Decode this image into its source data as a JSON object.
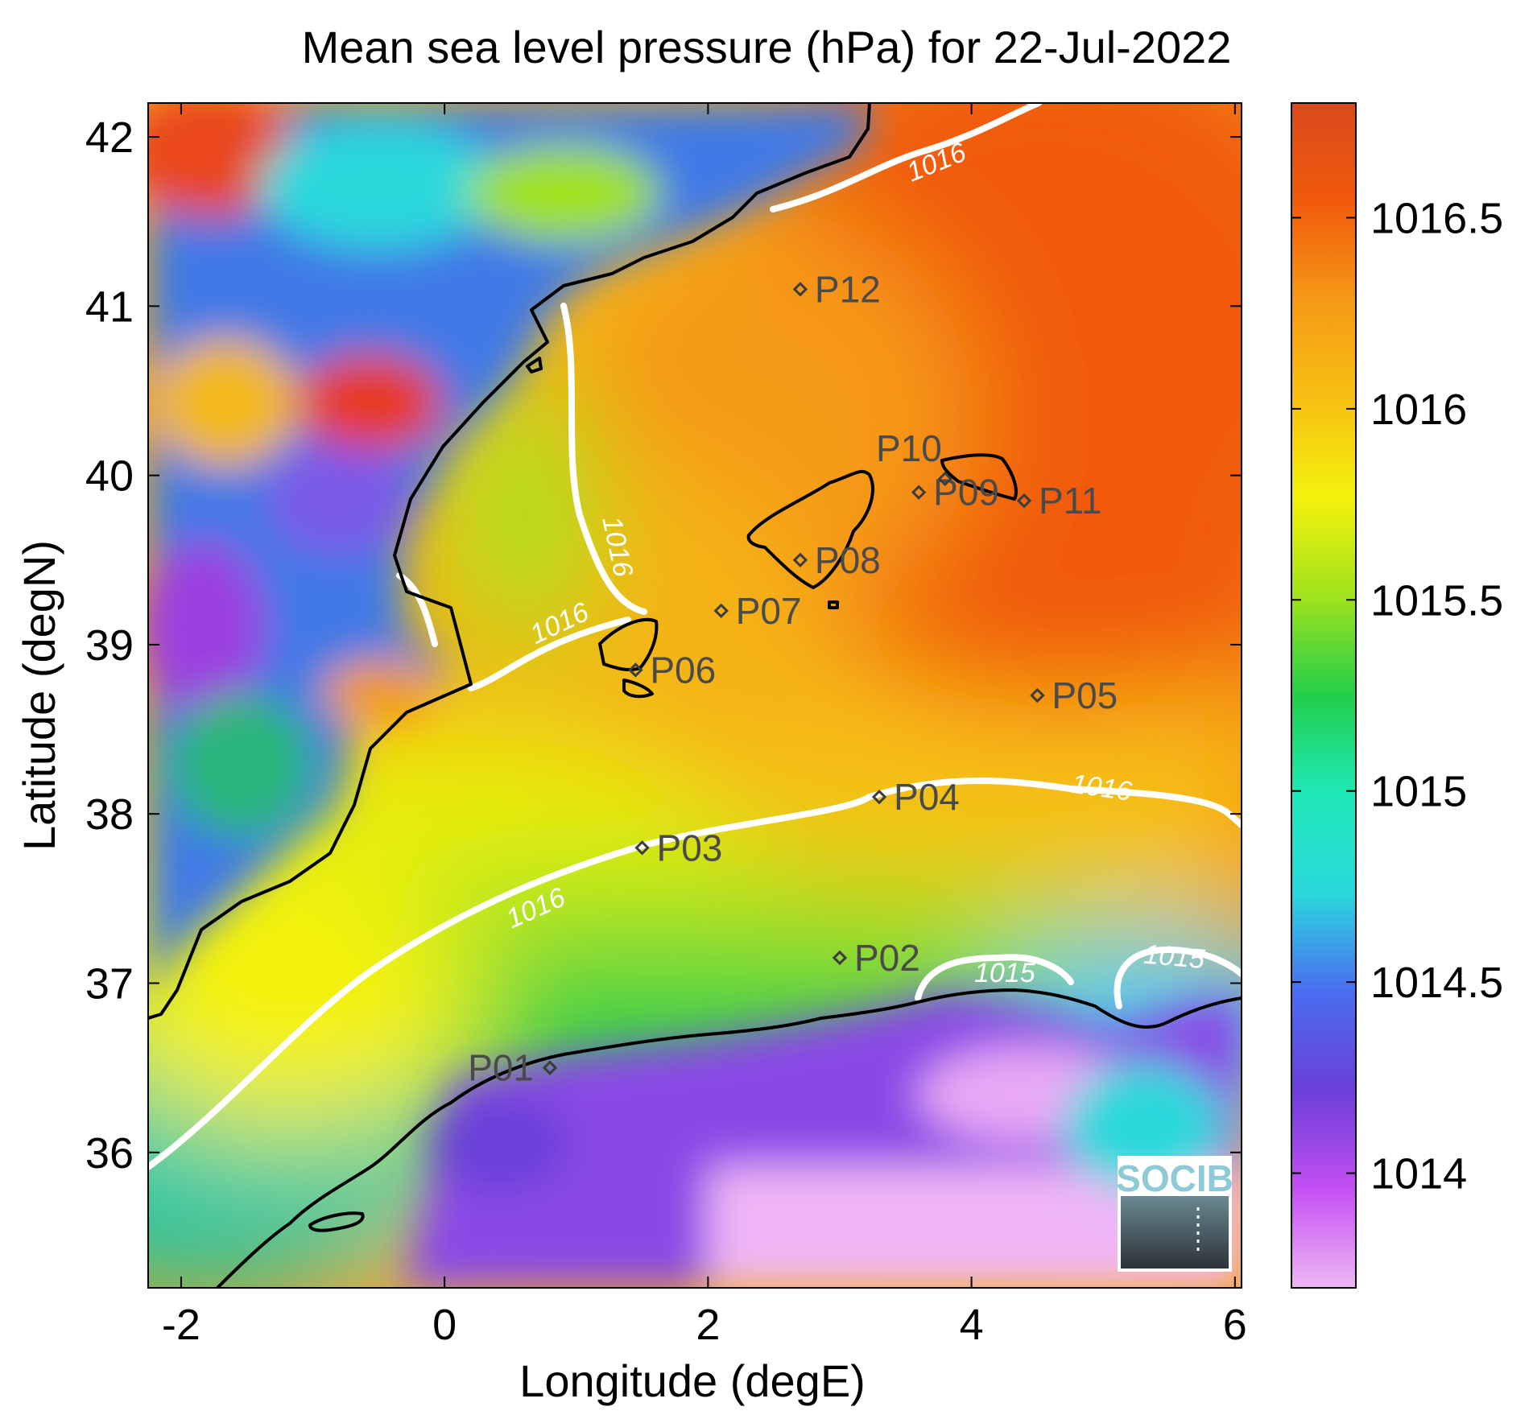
{
  "chart_data": {
    "type": "heatmap",
    "title": "Mean sea level pressure (hPa) for 22-Jul-2022",
    "xlabel": "Longitude (degE)",
    "ylabel": "Latitude (degN)",
    "xlim": [
      -2.25,
      6.05
    ],
    "ylim": [
      35.2,
      42.2
    ],
    "xticks": [
      -2,
      0,
      2,
      4,
      6
    ],
    "xtick_labels": [
      "-2",
      "0",
      "2",
      "4",
      "6"
    ],
    "yticks": [
      36,
      37,
      38,
      39,
      40,
      41,
      42
    ],
    "ytick_labels": [
      "36",
      "37",
      "38",
      "39",
      "40",
      "41",
      "42"
    ],
    "colorbar": {
      "range": [
        1013.7,
        1016.8
      ],
      "ticks": [
        1014,
        1014.5,
        1015,
        1015.5,
        1016,
        1016.5
      ],
      "tick_labels": [
        "1014",
        "1014.5",
        "1015",
        "1015.5",
        "1016",
        "1016.5"
      ],
      "colormap": [
        "#eeb7f4",
        "#c44ff2",
        "#6a3fd9",
        "#4a6df0",
        "#2ad8dc",
        "#1fe9b8",
        "#22cf4a",
        "#a0e21c",
        "#f4f20c",
        "#f7c012",
        "#f59a16",
        "#f15a0c",
        "#d94a1c"
      ]
    },
    "contours": [
      {
        "level": 1016,
        "label": "1016"
      },
      {
        "level": 1015,
        "label": "1015"
      }
    ],
    "stations": [
      {
        "name": "P01",
        "lon": 0.8,
        "lat": 36.5
      },
      {
        "name": "P02",
        "lon": 3.0,
        "lat": 37.15
      },
      {
        "name": "P03",
        "lon": 1.5,
        "lat": 37.8
      },
      {
        "name": "P04",
        "lon": 3.3,
        "lat": 38.1
      },
      {
        "name": "P05",
        "lon": 4.5,
        "lat": 38.7
      },
      {
        "name": "P06",
        "lon": 1.45,
        "lat": 38.85
      },
      {
        "name": "P07",
        "lon": 2.1,
        "lat": 39.2
      },
      {
        "name": "P08",
        "lon": 2.7,
        "lat": 39.5
      },
      {
        "name": "P09",
        "lon": 3.6,
        "lat": 39.9
      },
      {
        "name": "P10",
        "lon": 3.8,
        "lat": 39.98
      },
      {
        "name": "P11",
        "lon": 4.4,
        "lat": 39.85
      },
      {
        "name": "P12",
        "lon": 2.7,
        "lat": 41.1
      }
    ]
  },
  "logo": {
    "text": "SOCIB"
  }
}
